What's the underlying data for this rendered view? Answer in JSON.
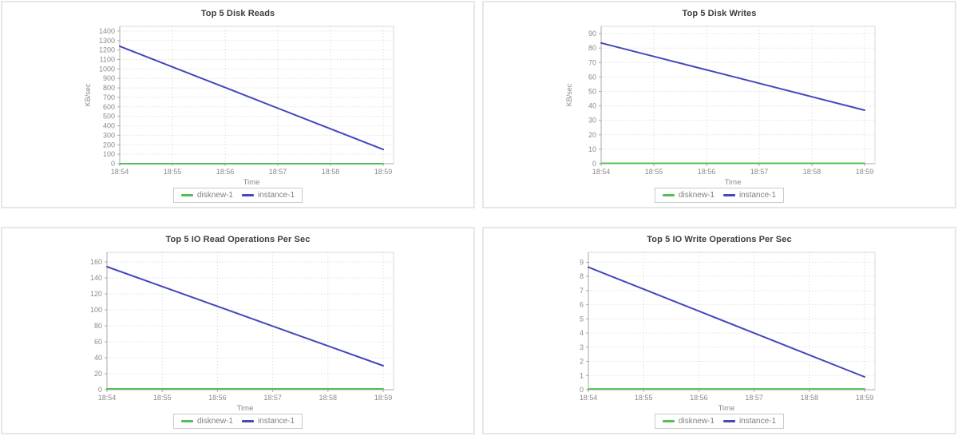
{
  "colors": {
    "panel_border": "#e7e7e7",
    "plot_border": "#d9d9d9",
    "grid": "#dedede",
    "axis": "#aaaaaa",
    "tick_label": "#8a8a8a",
    "axis_label": "#8a8a8a",
    "title": "#3d3d3d",
    "legend_text": "#808080",
    "legend_border": "#c9c9c9",
    "series_green": "#57bd57",
    "series_blue": "#4348bb"
  },
  "chart_data": [
    {
      "type": "line",
      "title": "Top 5 Disk Reads",
      "xlabel": "Time",
      "ylabel": "KB/sec",
      "x": [
        "18:54",
        "18:55",
        "18:56",
        "18:57",
        "18:58",
        "18:59"
      ],
      "yticks": [
        0,
        100,
        200,
        300,
        400,
        500,
        600,
        700,
        800,
        900,
        1000,
        1100,
        1200,
        1300,
        1400
      ],
      "ymax": 1450,
      "grid": true,
      "legend_position": "bottom",
      "series": [
        {
          "name": "disknew-1",
          "color": "#57bd57",
          "values": [
            0,
            0,
            0,
            0,
            0,
            0
          ]
        },
        {
          "name": "instance-1",
          "color": "#4348bb",
          "values": [
            1240,
            1022,
            804,
            586,
            368,
            150
          ]
        }
      ]
    },
    {
      "type": "line",
      "title": "Top 5 Disk Writes",
      "xlabel": "Time",
      "ylabel": "KB/sec",
      "x": [
        "18:54",
        "18:55",
        "18:56",
        "18:57",
        "18:58",
        "18:59"
      ],
      "yticks": [
        0,
        10,
        20,
        30,
        40,
        50,
        60,
        70,
        80,
        90
      ],
      "ymax": 95,
      "grid": true,
      "legend_position": "bottom",
      "series": [
        {
          "name": "disknew-1",
          "color": "#57bd57",
          "values": [
            0.3,
            0.3,
            0.3,
            0.3,
            0.3,
            0.3
          ]
        },
        {
          "name": "instance-1",
          "color": "#4348bb",
          "values": [
            83.5,
            74.2,
            64.9,
            55.6,
            46.3,
            37
          ]
        }
      ]
    },
    {
      "type": "line",
      "title": "Top 5 IO Read Operations Per Sec",
      "xlabel": "Time",
      "ylabel": "",
      "x": [
        "18:54",
        "18:55",
        "18:56",
        "18:57",
        "18:58",
        "18:59"
      ],
      "yticks": [
        0,
        20,
        40,
        60,
        80,
        100,
        120,
        140,
        160
      ],
      "ymax": 172,
      "grid": true,
      "legend_position": "bottom",
      "series": [
        {
          "name": "disknew-1",
          "color": "#57bd57",
          "values": [
            1,
            1,
            1,
            1,
            1,
            1
          ]
        },
        {
          "name": "instance-1",
          "color": "#4348bb",
          "values": [
            154,
            129.2,
            104.4,
            79.6,
            54.8,
            30
          ]
        }
      ]
    },
    {
      "type": "line",
      "title": "Top 5 IO Write Operations Per Sec",
      "xlabel": "Time",
      "ylabel": "",
      "x": [
        "18:54",
        "18:55",
        "18:56",
        "18:57",
        "18:58",
        "18:59"
      ],
      "yticks": [
        0,
        1,
        2,
        3,
        4,
        5,
        6,
        7,
        8,
        9
      ],
      "ymax": 9.7,
      "grid": true,
      "legend_position": "bottom",
      "series": [
        {
          "name": "disknew-1",
          "color": "#57bd57",
          "values": [
            0.05,
            0.05,
            0.05,
            0.05,
            0.05,
            0.05
          ]
        },
        {
          "name": "instance-1",
          "color": "#4348bb",
          "values": [
            8.65,
            7.1,
            5.55,
            4.0,
            2.45,
            0.9
          ]
        }
      ]
    }
  ]
}
